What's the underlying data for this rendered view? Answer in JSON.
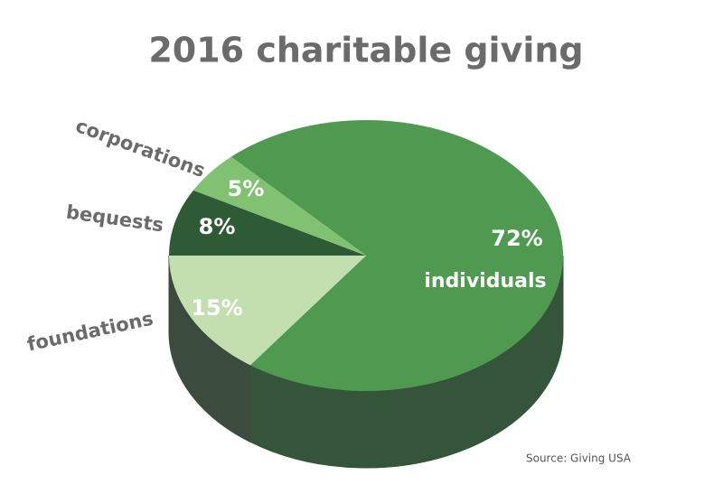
{
  "chart_data": {
    "type": "pie3d",
    "title": "2016 charitable giving",
    "categories": [
      "individuals",
      "foundations",
      "bequests",
      "corporations"
    ],
    "values": [
      72,
      15,
      8,
      5
    ],
    "value_labels": [
      "72%",
      "15%",
      "8%",
      "5%"
    ],
    "colors": [
      "#4f9a50",
      "#c3dfb0",
      "#2e5a36",
      "#80c272"
    ],
    "source": "Source: Giving USA"
  }
}
